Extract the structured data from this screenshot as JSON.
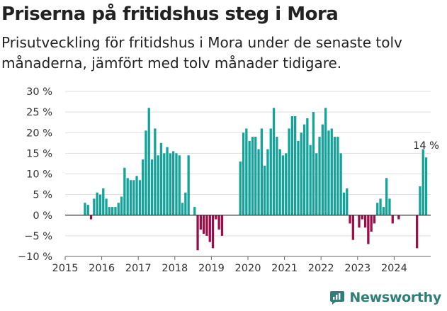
{
  "title": "Priserna på fritidshus steg i Mora",
  "subtitle": "Prisutveckling för fritidshus i Mora under de senaste tolv månaderna, jämfört med tolv månader tidigare.",
  "brand": "Newsworthy",
  "colors": {
    "positive": "#14a39a",
    "negative": "#990f4a",
    "logo": "#2f7f78"
  },
  "chart_data": {
    "type": "bar",
    "ylim": [
      -10,
      30
    ],
    "yticks": [
      -10,
      -5,
      0,
      5,
      10,
      15,
      20,
      25,
      30
    ],
    "ytick_labels": [
      "−10 %",
      "−5 %",
      "0 %",
      "5 %",
      "10 %",
      "15 %",
      "20 %",
      "25 %",
      "30 %"
    ],
    "xlim": [
      "2015-01",
      "2024-12"
    ],
    "xticks": [
      "2015",
      "2016",
      "2017",
      "2018",
      "2019",
      "2020",
      "2021",
      "2022",
      "2023",
      "2024"
    ],
    "grid": true,
    "annotation": {
      "text": "14 %",
      "month": "2024-11"
    },
    "series": [
      {
        "values": [
          {
            "month": "2015-07",
            "value": 3
          },
          {
            "month": "2015-08",
            "value": 2.5
          },
          {
            "month": "2015-09",
            "value": -1
          },
          {
            "month": "2015-10",
            "value": 4
          },
          {
            "month": "2015-11",
            "value": 5.5
          },
          {
            "month": "2015-12",
            "value": 5
          },
          {
            "month": "2016-01",
            "value": 6.5
          },
          {
            "month": "2016-02",
            "value": 4
          },
          {
            "month": "2016-03",
            "value": 2
          },
          {
            "month": "2016-04",
            "value": 2
          },
          {
            "month": "2016-05",
            "value": 2
          },
          {
            "month": "2016-06",
            "value": 3
          },
          {
            "month": "2016-07",
            "value": 4.5
          },
          {
            "month": "2016-08",
            "value": 11.5
          },
          {
            "month": "2016-09",
            "value": 9
          },
          {
            "month": "2016-10",
            "value": 8.5
          },
          {
            "month": "2016-11",
            "value": 8.5
          },
          {
            "month": "2016-12",
            "value": 9.5
          },
          {
            "month": "2017-01",
            "value": 8.5
          },
          {
            "month": "2017-02",
            "value": 13.5
          },
          {
            "month": "2017-03",
            "value": 20.5
          },
          {
            "month": "2017-04",
            "value": 26
          },
          {
            "month": "2017-05",
            "value": 13.5
          },
          {
            "month": "2017-06",
            "value": 21
          },
          {
            "month": "2017-07",
            "value": 14.5
          },
          {
            "month": "2017-08",
            "value": 17.5
          },
          {
            "month": "2017-09",
            "value": 15
          },
          {
            "month": "2017-10",
            "value": 16.5
          },
          {
            "month": "2017-11",
            "value": 15
          },
          {
            "month": "2017-12",
            "value": 15.5
          },
          {
            "month": "2018-01",
            "value": 15
          },
          {
            "month": "2018-02",
            "value": 14.5
          },
          {
            "month": "2018-03",
            "value": 3
          },
          {
            "month": "2018-04",
            "value": 5.5
          },
          {
            "month": "2018-05",
            "value": 14.5
          },
          {
            "month": "2018-07",
            "value": 2
          },
          {
            "month": "2018-08",
            "value": -8.5
          },
          {
            "month": "2018-09",
            "value": -3.5
          },
          {
            "month": "2018-10",
            "value": -4.5
          },
          {
            "month": "2018-11",
            "value": -5
          },
          {
            "month": "2018-12",
            "value": -6.5
          },
          {
            "month": "2019-01",
            "value": -8
          },
          {
            "month": "2019-02",
            "value": -1
          },
          {
            "month": "2019-03",
            "value": -3.5
          },
          {
            "month": "2019-04",
            "value": -5
          },
          {
            "month": "2019-10",
            "value": 13
          },
          {
            "month": "2019-11",
            "value": 20
          },
          {
            "month": "2019-12",
            "value": 21
          },
          {
            "month": "2020-01",
            "value": 18
          },
          {
            "month": "2020-02",
            "value": 19
          },
          {
            "month": "2020-03",
            "value": 19
          },
          {
            "month": "2020-04",
            "value": 16
          },
          {
            "month": "2020-05",
            "value": 21
          },
          {
            "month": "2020-06",
            "value": 12
          },
          {
            "month": "2020-07",
            "value": 16
          },
          {
            "month": "2020-08",
            "value": 21
          },
          {
            "month": "2020-09",
            "value": 26
          },
          {
            "month": "2020-10",
            "value": 19
          },
          {
            "month": "2020-11",
            "value": 16
          },
          {
            "month": "2020-12",
            "value": 14.5
          },
          {
            "month": "2021-01",
            "value": 15
          },
          {
            "month": "2021-02",
            "value": 21
          },
          {
            "month": "2021-03",
            "value": 24
          },
          {
            "month": "2021-04",
            "value": 24
          },
          {
            "month": "2021-05",
            "value": 18
          },
          {
            "month": "2021-06",
            "value": 20
          },
          {
            "month": "2021-07",
            "value": 22
          },
          {
            "month": "2021-08",
            "value": 23.5
          },
          {
            "month": "2021-09",
            "value": 17
          },
          {
            "month": "2021-10",
            "value": 25
          },
          {
            "month": "2021-11",
            "value": 15
          },
          {
            "month": "2021-12",
            "value": 19
          },
          {
            "month": "2022-01",
            "value": 22
          },
          {
            "month": "2022-02",
            "value": 26
          },
          {
            "month": "2022-03",
            "value": 20.5
          },
          {
            "month": "2022-04",
            "value": 21
          },
          {
            "month": "2022-05",
            "value": 19
          },
          {
            "month": "2022-06",
            "value": 19
          },
          {
            "month": "2022-07",
            "value": 15
          },
          {
            "month": "2022-08",
            "value": 5.5
          },
          {
            "month": "2022-09",
            "value": 6.5
          },
          {
            "month": "2022-10",
            "value": -2
          },
          {
            "month": "2022-11",
            "value": -6
          },
          {
            "month": "2023-01",
            "value": -3
          },
          {
            "month": "2023-02",
            "value": -1
          },
          {
            "month": "2023-03",
            "value": -3
          },
          {
            "month": "2023-04",
            "value": -7
          },
          {
            "month": "2023-05",
            "value": -4
          },
          {
            "month": "2023-06",
            "value": -2
          },
          {
            "month": "2023-07",
            "value": 3
          },
          {
            "month": "2023-08",
            "value": 4
          },
          {
            "month": "2023-09",
            "value": 2
          },
          {
            "month": "2023-10",
            "value": 9
          },
          {
            "month": "2023-11",
            "value": 4
          },
          {
            "month": "2023-12",
            "value": -2
          },
          {
            "month": "2024-02",
            "value": -1
          },
          {
            "month": "2024-08",
            "value": -8
          },
          {
            "month": "2024-09",
            "value": 7
          },
          {
            "month": "2024-10",
            "value": 16
          },
          {
            "month": "2024-11",
            "value": 14
          }
        ]
      }
    ]
  }
}
